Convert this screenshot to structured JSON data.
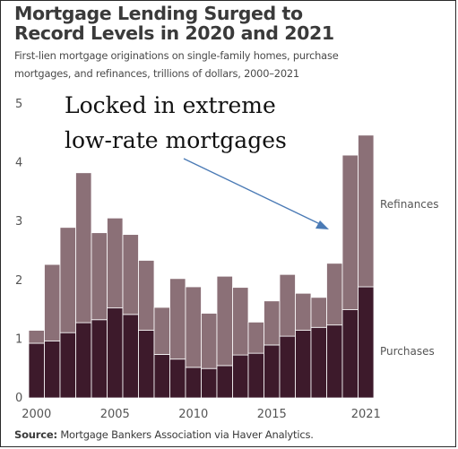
{
  "title_line1": "Mortgage Lending Surged to",
  "title_line2": "Record Levels in 2020 and 2021",
  "subtitle_line1": "First-lien mortgage originations on single-family homes, purchase",
  "subtitle_line2": "mortgages, and refinances, trillions of dollars, 2000–2021",
  "source_label": "Source:",
  "source_text": " Mortgage Bankers Association via Haver Analytics.",
  "annotation_line1": "Locked in extreme",
  "annotation_line2": "low-rate mortgages",
  "colors": {
    "purchases": "#3d1a2b",
    "refinances": "#8b7077"
  },
  "chart_data": {
    "type": "bar",
    "stacked": true,
    "categories": [
      "2000",
      "2001",
      "2002",
      "2003",
      "2004",
      "2005",
      "2006",
      "2007",
      "2008",
      "2009",
      "2010",
      "2011",
      "2012",
      "2013",
      "2014",
      "2015",
      "2016",
      "2017",
      "2018",
      "2019",
      "2020",
      "2021"
    ],
    "series": [
      {
        "name": "Purchases",
        "values": [
          0.93,
          0.97,
          1.11,
          1.28,
          1.33,
          1.53,
          1.42,
          1.15,
          0.74,
          0.66,
          0.52,
          0.5,
          0.55,
          0.73,
          0.76,
          0.9,
          1.05,
          1.15,
          1.2,
          1.24,
          1.5,
          1.89
        ]
      },
      {
        "name": "Refinances",
        "values": [
          0.22,
          1.3,
          1.79,
          2.55,
          1.48,
          1.53,
          1.36,
          1.19,
          0.8,
          1.37,
          1.37,
          0.94,
          1.52,
          1.15,
          0.53,
          0.75,
          1.05,
          0.63,
          0.51,
          1.05,
          2.63,
          2.58
        ]
      }
    ],
    "ylim": [
      0,
      5
    ],
    "y_ticks": [
      "0",
      "1",
      "2",
      "3",
      "4",
      "5"
    ],
    "x_tick_labels": [
      {
        "index": 0,
        "label": "2000"
      },
      {
        "index": 5,
        "label": "2005"
      },
      {
        "index": 10,
        "label": "2010"
      },
      {
        "index": 15,
        "label": "2015"
      },
      {
        "index": 21,
        "label": "2021"
      }
    ],
    "grid": false,
    "legend": "direct labels on right"
  }
}
